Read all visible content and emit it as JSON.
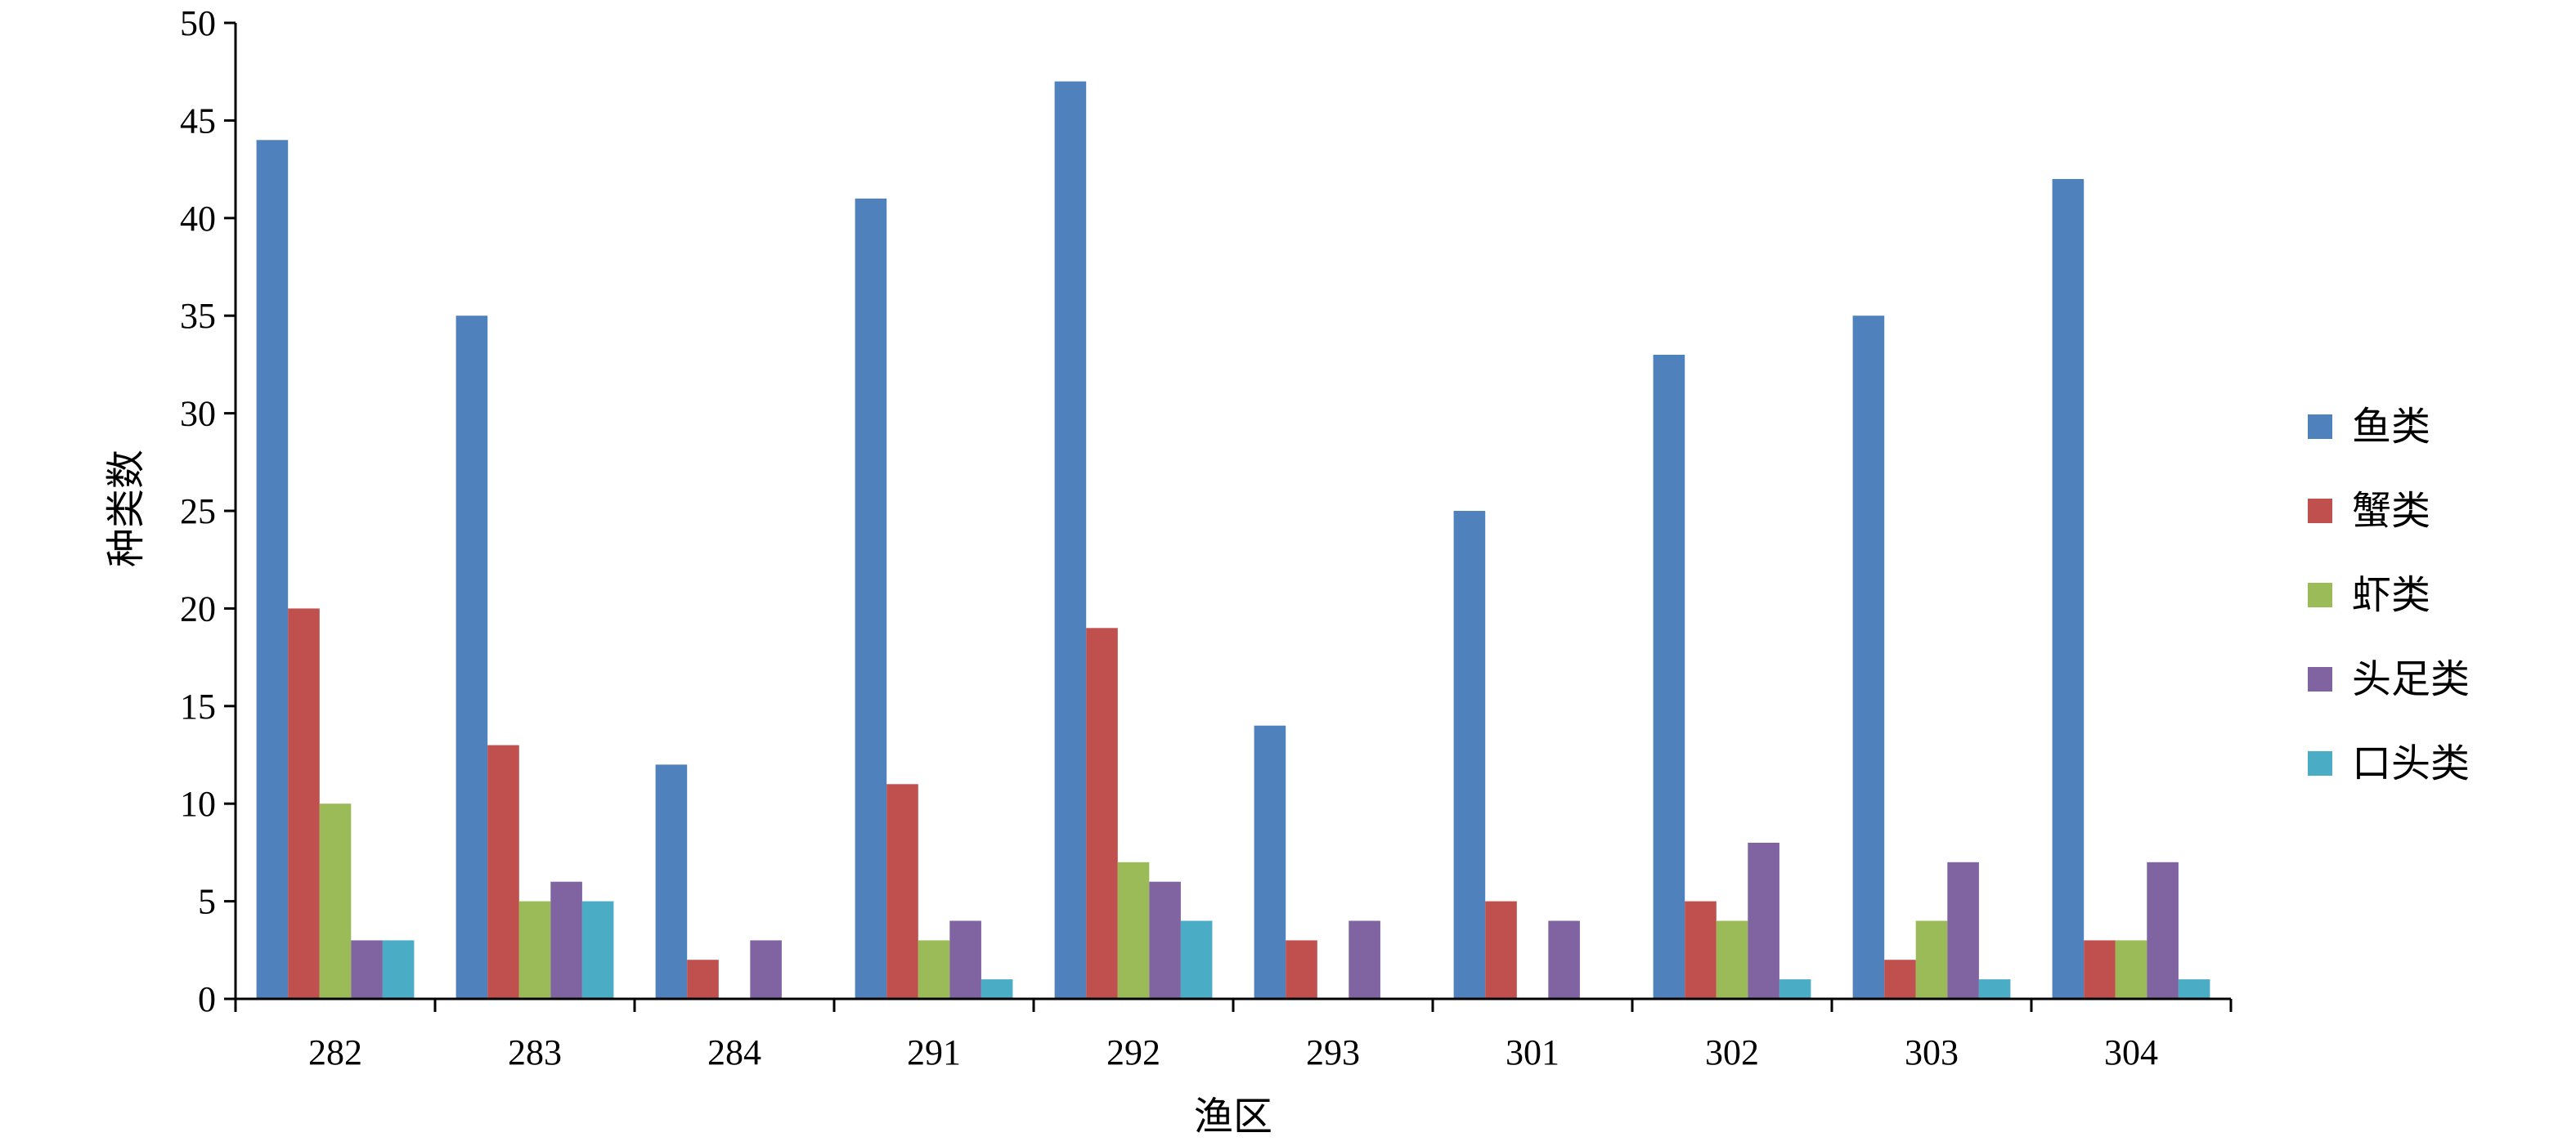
{
  "chart_data": {
    "type": "bar",
    "xlabel": "渔区",
    "ylabel": "种类数",
    "ylim": [
      0,
      50
    ],
    "yticks": [
      0,
      5,
      10,
      15,
      20,
      25,
      30,
      35,
      40,
      45,
      50
    ],
    "categories": [
      "282",
      "283",
      "284",
      "291",
      "292",
      "293",
      "301",
      "302",
      "303",
      "304"
    ],
    "series": [
      {
        "name": "鱼类",
        "color": "#4F81BD",
        "values": [
          44,
          35,
          12,
          41,
          47,
          14,
          25,
          33,
          35,
          42
        ]
      },
      {
        "name": "蟹类",
        "color": "#C0504D",
        "values": [
          20,
          13,
          2,
          11,
          19,
          3,
          5,
          5,
          2,
          3
        ]
      },
      {
        "name": "虾类",
        "color": "#9BBB59",
        "values": [
          10,
          5,
          0,
          3,
          7,
          0,
          0,
          4,
          4,
          3
        ]
      },
      {
        "name": "头足类",
        "color": "#8064A2",
        "values": [
          3,
          6,
          3,
          4,
          6,
          4,
          4,
          8,
          7,
          7
        ]
      },
      {
        "name": "口头类",
        "color": "#4BACC6",
        "values": [
          3,
          5,
          0,
          1,
          4,
          0,
          0,
          1,
          1,
          1
        ]
      }
    ],
    "legend_position": "right",
    "grid": false
  }
}
